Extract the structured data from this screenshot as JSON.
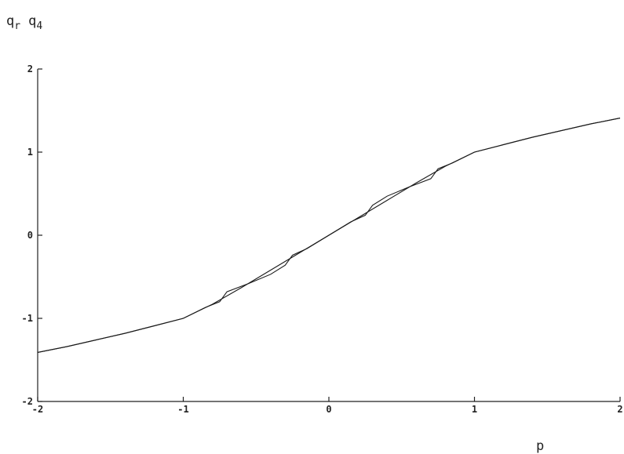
{
  "chart_data": {
    "type": "line",
    "ylabel": {
      "parts": [
        {
          "base": "q",
          "sub": "r"
        },
        {
          "base": "q",
          "sub": "4"
        }
      ]
    },
    "xlabel": "p",
    "xlim": [
      -2,
      2
    ],
    "ylim": [
      -2,
      2
    ],
    "xticks": [
      -2,
      -1,
      0,
      1,
      2
    ],
    "yticks": [
      -2,
      -1,
      0,
      1,
      2
    ],
    "xtick_labels": [
      "-2",
      "-1",
      "0",
      "1",
      "2"
    ],
    "ytick_labels": [
      "-2",
      "-1",
      "0",
      "1",
      "2"
    ],
    "grid": false,
    "legend": "none",
    "series": [
      {
        "key": "smooth",
        "x": [
          -2,
          -1.8,
          -1.6,
          -1.4,
          -1.2,
          -1,
          -0.8,
          -0.6,
          -0.4,
          -0.2,
          0,
          0.2,
          0.4,
          0.6,
          0.8,
          1,
          1.2,
          1.4,
          1.6,
          1.8,
          2
        ],
        "y": [
          -1.41,
          -1.34,
          -1.26,
          -1.18,
          -1.09,
          -1.0,
          -0.83,
          -0.63,
          -0.42,
          -0.21,
          0,
          0.21,
          0.42,
          0.63,
          0.83,
          1.0,
          1.09,
          1.18,
          1.26,
          1.34,
          1.41
        ]
      },
      {
        "key": "stepped",
        "x": [
          -2,
          -1.8,
          -1.6,
          -1.4,
          -1.2,
          -1,
          -0.85,
          -0.75,
          -0.7,
          -0.55,
          -0.4,
          -0.3,
          -0.25,
          -0.15,
          0,
          0.15,
          0.25,
          0.3,
          0.4,
          0.55,
          0.7,
          0.75,
          0.85,
          1,
          1.2,
          1.4,
          1.6,
          1.8,
          2
        ],
        "y": [
          -1.41,
          -1.34,
          -1.26,
          -1.18,
          -1.09,
          -1.0,
          -0.87,
          -0.8,
          -0.68,
          -0.58,
          -0.47,
          -0.36,
          -0.24,
          -0.16,
          0,
          0.16,
          0.24,
          0.36,
          0.47,
          0.58,
          0.68,
          0.8,
          0.87,
          1.0,
          1.09,
          1.18,
          1.26,
          1.34,
          1.41
        ]
      }
    ]
  }
}
